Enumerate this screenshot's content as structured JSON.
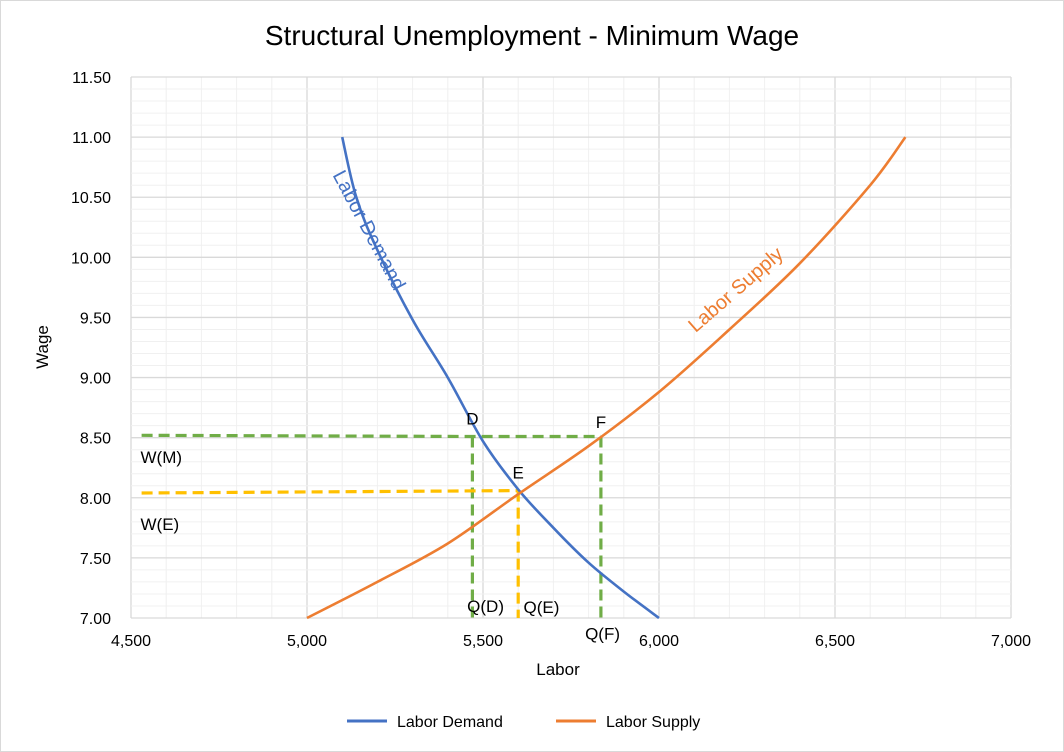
{
  "chart_data": {
    "type": "line",
    "title": "Structural Unemployment - Minimum Wage",
    "xlabel": "Labor",
    "ylabel": "Wage",
    "xlim": [
      4500,
      7000
    ],
    "ylim": [
      7.0,
      11.5
    ],
    "x_ticks": [
      4500,
      5000,
      5500,
      6000,
      6500,
      7000
    ],
    "x_tick_labels": [
      "4,500",
      "5,000",
      "5,500",
      "6,000",
      "6,500",
      "7,000"
    ],
    "y_ticks": [
      7.0,
      7.5,
      8.0,
      8.5,
      9.0,
      9.5,
      10.0,
      10.5,
      11.0,
      11.5
    ],
    "y_tick_labels": [
      "7.00",
      "7.50",
      "8.00",
      "8.50",
      "9.00",
      "9.50",
      "10.00",
      "10.50",
      "11.00",
      "11.50"
    ],
    "grid": true,
    "legend_position": "bottom",
    "series": [
      {
        "name": "Labor Demand",
        "color": "#4472C4",
        "x": [
          5100,
          5140,
          5200,
          5300,
          5400,
          5500,
          5600,
          5700,
          5800,
          5900,
          6000
        ],
        "y": [
          11.0,
          10.5,
          10.06,
          9.48,
          9.0,
          8.47,
          8.07,
          7.75,
          7.46,
          7.22,
          7.0
        ]
      },
      {
        "name": "Labor Supply",
        "color": "#ED7D31",
        "x": [
          5000,
          5200,
          5400,
          5600,
          5800,
          6000,
          6200,
          6400,
          6600,
          6700
        ],
        "y": [
          7.0,
          7.3,
          7.62,
          8.03,
          8.43,
          8.88,
          9.4,
          9.95,
          10.6,
          11.0
        ]
      }
    ],
    "curve_labels": [
      {
        "text": "Labor Demand",
        "color": "#4472C4"
      },
      {
        "text": "Labor Supply",
        "color": "#ED7D31"
      }
    ],
    "reference_lines": [
      {
        "color": "#70AD47",
        "points": [
          [
            4530,
            8.52
          ],
          [
            5470,
            8.51
          ],
          [
            5835,
            8.51
          ]
        ]
      },
      {
        "color": "#70AD47",
        "points": [
          [
            5470,
            8.51
          ],
          [
            5470,
            7.0
          ]
        ]
      },
      {
        "color": "#70AD47",
        "points": [
          [
            5835,
            8.51
          ],
          [
            5835,
            7.0
          ]
        ]
      },
      {
        "color": "#FFC000",
        "points": [
          [
            4530,
            8.04
          ],
          [
            5600,
            8.06
          ]
        ]
      },
      {
        "color": "#FFC000",
        "points": [
          [
            5600,
            8.06
          ],
          [
            5600,
            7.0
          ]
        ]
      }
    ],
    "annotations": [
      {
        "text": "D",
        "x": 5470,
        "y": 8.61
      },
      {
        "text": "F",
        "x": 5835,
        "y": 8.58
      },
      {
        "text": "E",
        "x": 5600,
        "y": 8.16
      },
      {
        "text": "W(M)",
        "x": 4527,
        "y": 8.29
      },
      {
        "text": "W(E)",
        "x": 4527,
        "y": 7.73
      },
      {
        "text": "Q(D)",
        "x": 5455,
        "y": 7.05
      },
      {
        "text": "Q(E)",
        "x": 5615,
        "y": 7.04
      },
      {
        "text": "Q(F)",
        "x": 5790,
        "y": 6.82
      }
    ]
  }
}
